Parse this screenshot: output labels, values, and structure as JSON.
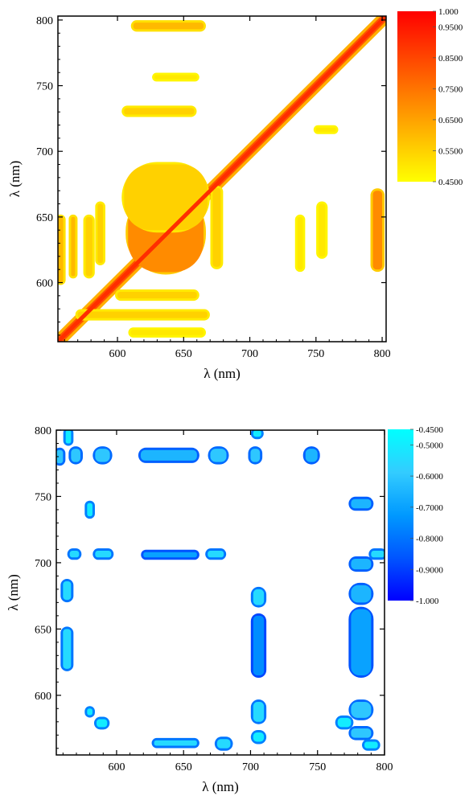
{
  "chart_data": [
    {
      "type": "heatmap",
      "title": "",
      "xlabel": "λ (nm)",
      "ylabel": "λ (nm)",
      "xlim": [
        555,
        803
      ],
      "ylim": [
        555,
        803
      ],
      "xticks": [
        600,
        650,
        700,
        750,
        800
      ],
      "yticks": [
        600,
        650,
        700,
        750,
        800
      ],
      "grid": false,
      "colorbar": {
        "position": "right",
        "range": [
          0.45,
          1.0
        ],
        "colors": [
          "#ffff00",
          "#ffcc00",
          "#ff9900",
          "#ff6600",
          "#ff3300",
          "#ff0000"
        ],
        "labels": [
          "1.000",
          "0.9500",
          "0.8500",
          "0.7500",
          "0.6500",
          "0.5500",
          "0.4500"
        ],
        "label_values": [
          1.0,
          0.95,
          0.85,
          0.75,
          0.65,
          0.55,
          0.45
        ]
      },
      "regions": [
        {
          "x": [
            555,
            803
          ],
          "y": [
            555,
            803
          ],
          "value": 0,
          "shape": "diagonal"
        },
        {
          "x": [
            618,
            660
          ],
          "y": [
            618,
            662
          ],
          "value": 0.88,
          "shape": "ellipse"
        },
        {
          "x": [
            608,
            665
          ],
          "y": [
            608,
            668
          ],
          "value": 0.7,
          "shape": "rect"
        },
        {
          "x": [
            605,
            668
          ],
          "y": [
            640,
            690
          ],
          "value": 0.55,
          "shape": "rect"
        },
        {
          "x": [
            612,
            665
          ],
          "y": [
            793,
            798
          ],
          "value": 0.6,
          "shape": "rect"
        },
        {
          "x": [
            628,
            660
          ],
          "y": [
            755,
            758
          ],
          "value": 0.5,
          "shape": "rect"
        },
        {
          "x": [
            605,
            658
          ],
          "y": [
            728,
            733
          ],
          "value": 0.55,
          "shape": "rect"
        },
        {
          "x": [
            555,
            559
          ],
          "y": [
            600,
            650
          ],
          "value": 0.6,
          "shape": "rect"
        },
        {
          "x": [
            565,
            568
          ],
          "y": [
            605,
            650
          ],
          "value": 0.6,
          "shape": "rect"
        },
        {
          "x": [
            576,
            581
          ],
          "y": [
            605,
            650
          ],
          "value": 0.55,
          "shape": "rect"
        },
        {
          "x": [
            585,
            589
          ],
          "y": [
            615,
            660
          ],
          "value": 0.55,
          "shape": "rect"
        },
        {
          "x": [
            672,
            678
          ],
          "y": [
            612,
            672
          ],
          "value": 0.55,
          "shape": "rect"
        },
        {
          "x": [
            752,
            757
          ],
          "y": [
            620,
            660
          ],
          "value": 0.5,
          "shape": "rect"
        },
        {
          "x": [
            736,
            740
          ],
          "y": [
            610,
            650
          ],
          "value": 0.5,
          "shape": "rect"
        },
        {
          "x": [
            793,
            800
          ],
          "y": [
            610,
            670
          ],
          "value": 0.7,
          "shape": "rect"
        },
        {
          "x": [
            600,
            660
          ],
          "y": [
            588,
            593
          ],
          "value": 0.55,
          "shape": "rect"
        },
        {
          "x": [
            570,
            668
          ],
          "y": [
            573,
            578
          ],
          "value": 0.55,
          "shape": "rect"
        },
        {
          "x": [
            610,
            665
          ],
          "y": [
            560,
            564
          ],
          "value": 0.5,
          "shape": "rect"
        },
        {
          "x": [
            750,
            765
          ],
          "y": [
            715,
            718
          ],
          "value": 0.5,
          "shape": "rect"
        }
      ]
    },
    {
      "type": "heatmap",
      "title": "",
      "xlabel": "λ (nm)",
      "ylabel": "λ (nm)",
      "xlim": [
        555,
        800
      ],
      "ylim": [
        555,
        800
      ],
      "xticks": [
        600,
        650,
        700,
        750,
        800
      ],
      "yticks": [
        600,
        650,
        700,
        750,
        800
      ],
      "grid": false,
      "colorbar": {
        "position": "right",
        "range": [
          -1.0,
          -0.45
        ],
        "colors": [
          "#0000ff",
          "#0055ff",
          "#0099ff",
          "#33ccff",
          "#00ffff"
        ],
        "labels": [
          "-0.4500",
          "-0.5000",
          "-0.6000",
          "-0.7000",
          "-0.8000",
          "-0.9000",
          "-1.000"
        ],
        "label_values": [
          -0.45,
          -0.5,
          -0.6,
          -0.7,
          -0.8,
          -0.9,
          -1.0
        ]
      },
      "regions": [
        {
          "x": [
            618,
            660
          ],
          "y": [
            777,
            785
          ],
          "value": -0.65,
          "shape": "rect"
        },
        {
          "x": [
            620,
            660
          ],
          "y": [
            704,
            708
          ],
          "value": -0.7,
          "shape": "rect"
        },
        {
          "x": [
            555,
            560
          ],
          "y": [
            775,
            785
          ],
          "value": -0.6,
          "shape": "rect"
        },
        {
          "x": [
            566,
            573
          ],
          "y": [
            776,
            786
          ],
          "value": -0.6,
          "shape": "rect"
        },
        {
          "x": [
            584,
            595
          ],
          "y": [
            776,
            786
          ],
          "value": -0.6,
          "shape": "rect"
        },
        {
          "x": [
            670,
            682
          ],
          "y": [
            776,
            786
          ],
          "value": -0.6,
          "shape": "rect"
        },
        {
          "x": [
            700,
            707
          ],
          "y": [
            776,
            786
          ],
          "value": -0.6,
          "shape": "rect"
        },
        {
          "x": [
            741,
            750
          ],
          "y": [
            776,
            786
          ],
          "value": -0.65,
          "shape": "rect"
        },
        {
          "x": [
            702,
            710
          ],
          "y": [
            615,
            660
          ],
          "value": -0.75,
          "shape": "rect"
        },
        {
          "x": [
            775,
            790
          ],
          "y": [
            615,
            665
          ],
          "value": -0.7,
          "shape": "rect"
        },
        {
          "x": [
            775,
            790
          ],
          "y": [
            670,
            683
          ],
          "value": -0.65,
          "shape": "rect"
        },
        {
          "x": [
            775,
            790
          ],
          "y": [
            695,
            703
          ],
          "value": -0.65,
          "shape": "rect"
        },
        {
          "x": [
            775,
            790
          ],
          "y": [
            741,
            748
          ],
          "value": -0.65,
          "shape": "rect"
        },
        {
          "x": [
            775,
            790
          ],
          "y": [
            583,
            595
          ],
          "value": -0.6,
          "shape": "rect"
        },
        {
          "x": [
            775,
            790
          ],
          "y": [
            568,
            575
          ],
          "value": -0.6,
          "shape": "rect"
        },
        {
          "x": [
            702,
            710
          ],
          "y": [
            580,
            595
          ],
          "value": -0.55,
          "shape": "rect"
        },
        {
          "x": [
            702,
            710
          ],
          "y": [
            668,
            680
          ],
          "value": -0.55,
          "shape": "rect"
        },
        {
          "x": [
            628,
            660
          ],
          "y": [
            562,
            566
          ],
          "value": -0.55,
          "shape": "rect"
        },
        {
          "x": [
            675,
            685
          ],
          "y": [
            560,
            567
          ],
          "value": -0.55,
          "shape": "rect"
        },
        {
          "x": [
            560,
            566
          ],
          "y": [
            620,
            650
          ],
          "value": -0.55,
          "shape": "rect"
        },
        {
          "x": [
            560,
            566
          ],
          "y": [
            672,
            686
          ],
          "value": -0.55,
          "shape": "rect"
        },
        {
          "x": [
            565,
            572
          ],
          "y": [
            704,
            709
          ],
          "value": -0.55,
          "shape": "rect"
        },
        {
          "x": [
            584,
            596
          ],
          "y": [
            704,
            709
          ],
          "value": -0.55,
          "shape": "rect"
        },
        {
          "x": [
            668,
            680
          ],
          "y": [
            704,
            709
          ],
          "value": -0.55,
          "shape": "rect"
        },
        {
          "x": [
            790,
            800
          ],
          "y": [
            704,
            709
          ],
          "value": -0.55,
          "shape": "rect"
        },
        {
          "x": [
            578,
            582
          ],
          "y": [
            585,
            590
          ],
          "value": -0.5,
          "shape": "rect"
        },
        {
          "x": [
            585,
            593
          ],
          "y": [
            576,
            582
          ],
          "value": -0.5,
          "shape": "rect"
        },
        {
          "x": [
            702,
            710
          ],
          "y": [
            565,
            572
          ],
          "value": -0.5,
          "shape": "rect"
        },
        {
          "x": [
            765,
            775
          ],
          "y": [
            576,
            583
          ],
          "value": -0.5,
          "shape": "rect"
        },
        {
          "x": [
            562,
            566
          ],
          "y": [
            790,
            800
          ],
          "value": -0.5,
          "shape": "rect"
        },
        {
          "x": [
            702,
            708
          ],
          "y": [
            795,
            800
          ],
          "value": -0.5,
          "shape": "rect"
        },
        {
          "x": [
            578,
            582
          ],
          "y": [
            735,
            745
          ],
          "value": -0.5,
          "shape": "rect"
        },
        {
          "x": [
            785,
            795
          ],
          "y": [
            560,
            565
          ],
          "value": -0.5,
          "shape": "rect"
        }
      ]
    }
  ]
}
